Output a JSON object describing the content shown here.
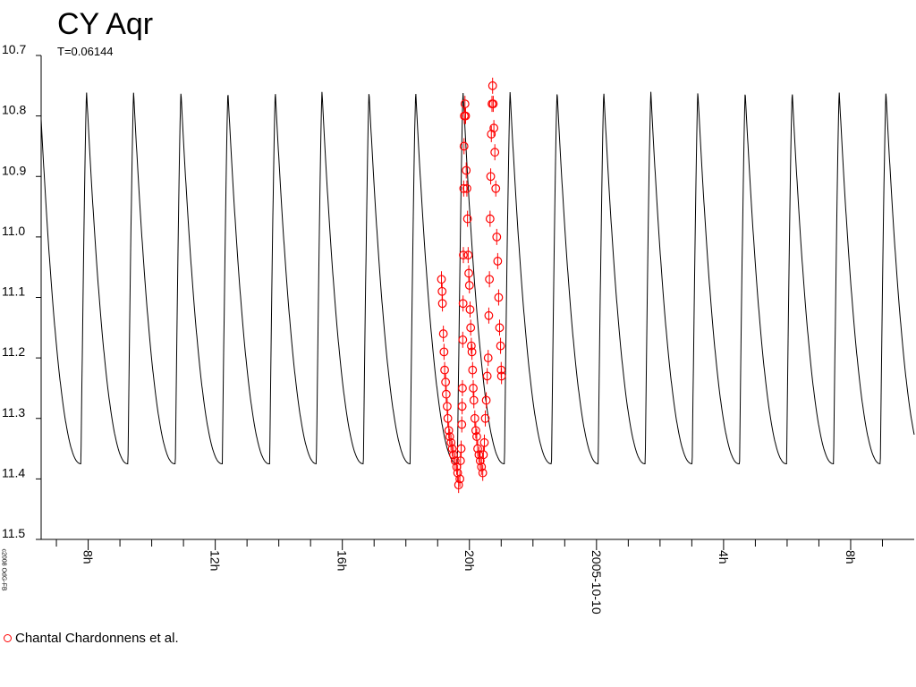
{
  "chart_data": {
    "type": "scatter",
    "title": "CY Aqr",
    "subtitle": "T=0.06144",
    "copyright": "c2008 OdG-FB",
    "ylim": [
      10.7,
      11.5
    ],
    "y_inverted": true,
    "y_ticks": [
      "10.7",
      "10.8",
      "10.9",
      "11.0",
      "11.1",
      "11.2",
      "11.3",
      "11.4",
      "11.5"
    ],
    "x_unit": "hours since 2005-10-09 00:00 UT",
    "xlim": [
      6.52,
      34.0
    ],
    "x_tick_labels": [
      {
        "x": 8,
        "label": "8h"
      },
      {
        "x": 12,
        "label": "12h"
      },
      {
        "x": 16,
        "label": "16h"
      },
      {
        "x": 20,
        "label": "20h"
      },
      {
        "x": 24,
        "label": "2005-10-10"
      },
      {
        "x": 28,
        "label": "4h"
      },
      {
        "x": 32,
        "label": "8h"
      }
    ],
    "x_minor_ticks": [
      7,
      9,
      10,
      11,
      13,
      14,
      15,
      17,
      18,
      19,
      21,
      22,
      23,
      25,
      26,
      27,
      29,
      30,
      31,
      33
    ],
    "model": {
      "name": "light curve",
      "color": "#000000",
      "period_days": 0.06144,
      "max_mag": 10.76,
      "min_mag": 11.375,
      "maxima_hours": [
        7.95,
        9.43,
        10.92,
        12.4,
        13.89,
        15.36,
        16.84,
        18.31,
        19.8,
        21.28,
        22.76,
        24.23,
        25.71,
        27.19,
        28.68,
        30.16,
        31.64,
        33.11
      ]
    },
    "series": [
      {
        "name": "Chantal Chardonnens et al.",
        "color": "#ff0000",
        "marker": "circle",
        "points": [
          [
            19.12,
            11.07
          ],
          [
            19.14,
            11.09
          ],
          [
            19.15,
            11.11
          ],
          [
            19.18,
            11.16
          ],
          [
            19.2,
            11.19
          ],
          [
            19.22,
            11.22
          ],
          [
            19.25,
            11.24
          ],
          [
            19.27,
            11.26
          ],
          [
            19.3,
            11.28
          ],
          [
            19.32,
            11.3
          ],
          [
            19.35,
            11.32
          ],
          [
            19.38,
            11.33
          ],
          [
            19.42,
            11.34
          ],
          [
            19.46,
            11.35
          ],
          [
            19.5,
            11.36
          ],
          [
            19.55,
            11.37
          ],
          [
            19.6,
            11.38
          ],
          [
            19.63,
            11.39
          ],
          [
            19.66,
            11.41
          ],
          [
            19.7,
            11.4
          ],
          [
            19.72,
            11.37
          ],
          [
            19.74,
            11.35
          ],
          [
            19.76,
            11.31
          ],
          [
            19.77,
            11.28
          ],
          [
            19.78,
            11.25
          ],
          [
            19.79,
            11.17
          ],
          [
            19.8,
            11.11
          ],
          [
            19.81,
            11.03
          ],
          [
            19.82,
            10.92
          ],
          [
            19.83,
            10.85
          ],
          [
            19.84,
            10.8
          ],
          [
            19.86,
            10.78
          ],
          [
            19.88,
            10.8
          ],
          [
            19.9,
            10.89
          ],
          [
            19.92,
            10.92
          ],
          [
            19.94,
            10.97
          ],
          [
            19.96,
            11.03
          ],
          [
            19.98,
            11.06
          ],
          [
            20.0,
            11.08
          ],
          [
            20.02,
            11.12
          ],
          [
            20.04,
            11.15
          ],
          [
            20.06,
            11.18
          ],
          [
            20.08,
            11.19
          ],
          [
            20.1,
            11.22
          ],
          [
            20.12,
            11.25
          ],
          [
            20.14,
            11.27
          ],
          [
            20.17,
            11.3
          ],
          [
            20.2,
            11.32
          ],
          [
            20.23,
            11.33
          ],
          [
            20.26,
            11.35
          ],
          [
            20.3,
            11.36
          ],
          [
            20.34,
            11.37
          ],
          [
            20.38,
            11.38
          ],
          [
            20.42,
            11.39
          ],
          [
            20.44,
            11.36
          ],
          [
            20.47,
            11.34
          ],
          [
            20.5,
            11.3
          ],
          [
            20.53,
            11.27
          ],
          [
            20.56,
            11.23
          ],
          [
            20.59,
            11.2
          ],
          [
            20.61,
            11.13
          ],
          [
            20.63,
            11.07
          ],
          [
            20.65,
            10.97
          ],
          [
            20.67,
            10.9
          ],
          [
            20.69,
            10.83
          ],
          [
            20.71,
            10.78
          ],
          [
            20.73,
            10.75
          ],
          [
            20.75,
            10.78
          ],
          [
            20.77,
            10.82
          ],
          [
            20.8,
            10.86
          ],
          [
            20.83,
            10.92
          ],
          [
            20.86,
            11.0
          ],
          [
            20.89,
            11.04
          ],
          [
            20.92,
            11.1
          ],
          [
            20.95,
            11.15
          ],
          [
            20.98,
            11.18
          ],
          [
            21.0,
            11.22
          ],
          [
            21.01,
            11.23
          ]
        ]
      }
    ],
    "grid": false,
    "legend_position": "bottom-left"
  },
  "legend": {
    "label": "Chantal Chardonnens et al."
  }
}
